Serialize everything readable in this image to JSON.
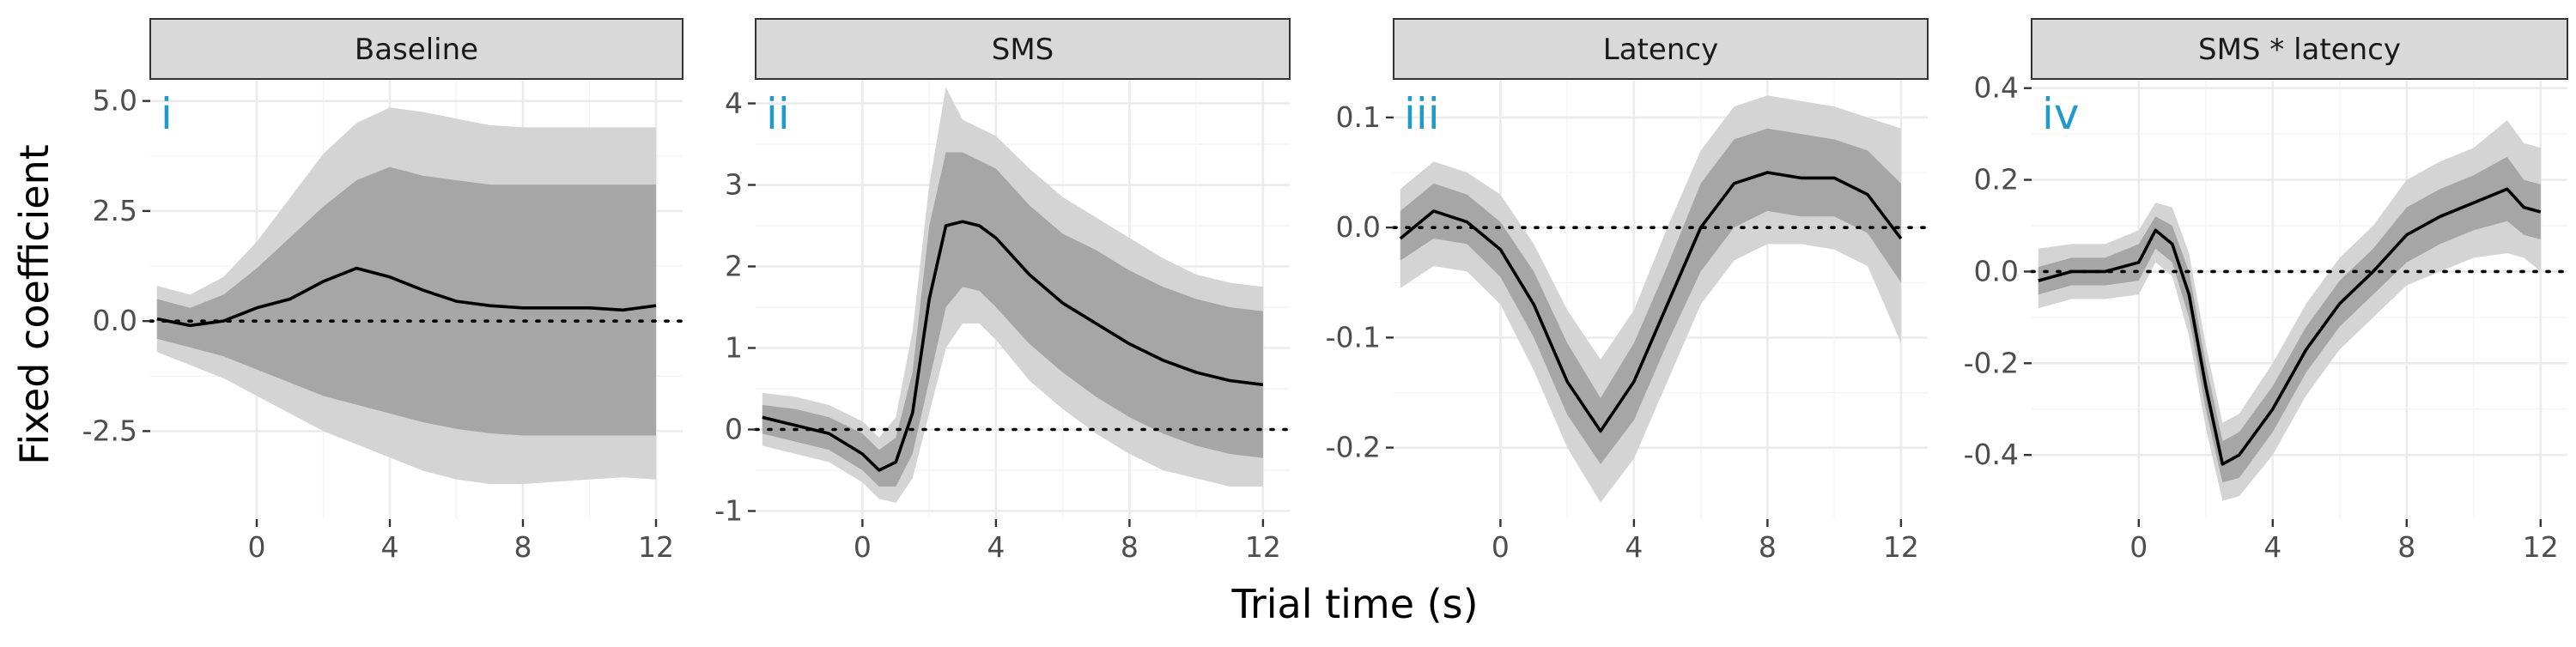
{
  "figure": {
    "xlabel": "Trial time (s)",
    "ylabel": "Fixed coefficient",
    "colors": {
      "outer_band": "#d4d4d4",
      "inner_band": "#a6a6a6",
      "line": "#000000",
      "panel_label": "#1e9bc8",
      "strip": "#d9d9d9"
    }
  },
  "chart_data": [
    {
      "type": "line",
      "title": "Baseline",
      "panel_label": "i",
      "x_ticks": [
        0,
        4,
        8,
        12
      ],
      "y_ticks": [
        5.0,
        2.5,
        0.0,
        -2.5
      ],
      "y_tick_labels": [
        "5.0",
        "2.5",
        "0.0",
        "-2.5"
      ],
      "xlim": [
        -3.2,
        12.8
      ],
      "ylim": [
        -4.5,
        5.5
      ],
      "reference_line": 0,
      "x": [
        -3,
        -2,
        -1,
        0,
        1,
        2,
        3,
        4,
        5,
        6,
        7,
        8,
        9,
        10,
        11,
        12
      ],
      "estimate": [
        0.05,
        -0.1,
        0.0,
        0.3,
        0.5,
        0.9,
        1.2,
        1.0,
        0.7,
        0.45,
        0.35,
        0.3,
        0.3,
        0.3,
        0.25,
        0.35
      ],
      "band_inner": {
        "lower": [
          -0.4,
          -0.6,
          -0.8,
          -1.1,
          -1.4,
          -1.7,
          -1.9,
          -2.1,
          -2.3,
          -2.45,
          -2.55,
          -2.6,
          -2.6,
          -2.6,
          -2.6,
          -2.6
        ],
        "upper": [
          0.5,
          0.3,
          0.6,
          1.2,
          1.9,
          2.6,
          3.2,
          3.5,
          3.3,
          3.2,
          3.1,
          3.1,
          3.1,
          3.1,
          3.1,
          3.1
        ]
      },
      "band_outer": {
        "lower": [
          -0.7,
          -1.0,
          -1.3,
          -1.7,
          -2.1,
          -2.5,
          -2.8,
          -3.1,
          -3.4,
          -3.6,
          -3.7,
          -3.7,
          -3.65,
          -3.6,
          -3.55,
          -3.6
        ],
        "upper": [
          0.8,
          0.6,
          1.0,
          1.8,
          2.8,
          3.8,
          4.5,
          4.85,
          4.75,
          4.6,
          4.45,
          4.4,
          4.4,
          4.4,
          4.4,
          4.4
        ]
      }
    },
    {
      "type": "line",
      "title": "SMS",
      "panel_label": "ii",
      "x_ticks": [
        0,
        4,
        8,
        12
      ],
      "y_ticks": [
        4,
        3,
        2,
        1,
        0,
        -1
      ],
      "y_tick_labels": [
        "4",
        "3",
        "2",
        "1",
        "0",
        "-1"
      ],
      "xlim": [
        -3.2,
        12.8
      ],
      "ylim": [
        -1.1,
        4.3
      ],
      "reference_line": 0,
      "x": [
        -3,
        -2,
        -1,
        0,
        0.5,
        1,
        1.5,
        2,
        2.5,
        3,
        3.5,
        4,
        5,
        6,
        7,
        8,
        9,
        10,
        11,
        12
      ],
      "estimate": [
        0.15,
        0.05,
        -0.05,
        -0.3,
        -0.5,
        -0.4,
        0.2,
        1.6,
        2.5,
        2.55,
        2.5,
        2.35,
        1.9,
        1.55,
        1.3,
        1.05,
        0.85,
        0.7,
        0.6,
        0.55
      ],
      "band_inner": {
        "lower": [
          -0.05,
          -0.15,
          -0.25,
          -0.5,
          -0.7,
          -0.7,
          -0.3,
          0.6,
          1.5,
          1.75,
          1.7,
          1.5,
          1.05,
          0.7,
          0.4,
          0.15,
          -0.05,
          -0.2,
          -0.3,
          -0.35
        ],
        "upper": [
          0.3,
          0.25,
          0.15,
          -0.05,
          -0.25,
          -0.1,
          0.7,
          2.5,
          3.4,
          3.4,
          3.3,
          3.2,
          2.75,
          2.4,
          2.2,
          1.95,
          1.75,
          1.6,
          1.5,
          1.45
        ]
      },
      "band_outer": {
        "lower": [
          -0.2,
          -0.3,
          -0.4,
          -0.65,
          -0.85,
          -0.9,
          -0.6,
          0.2,
          1.0,
          1.3,
          1.3,
          1.1,
          0.6,
          0.25,
          -0.05,
          -0.3,
          -0.5,
          -0.6,
          -0.7,
          -0.7
        ],
        "upper": [
          0.45,
          0.4,
          0.3,
          0.1,
          -0.1,
          0.15,
          1.2,
          3.0,
          4.2,
          3.8,
          3.7,
          3.6,
          3.2,
          2.85,
          2.6,
          2.35,
          2.1,
          1.9,
          1.8,
          1.75
        ]
      }
    },
    {
      "type": "line",
      "title": "Latency",
      "panel_label": "iii",
      "x_ticks": [
        0,
        4,
        8,
        12
      ],
      "y_ticks": [
        0.1,
        0.0,
        -0.1,
        -0.2
      ],
      "y_tick_labels": [
        "0.1",
        "0.0",
        "-0.1",
        "-0.2"
      ],
      "xlim": [
        -3.2,
        12.8
      ],
      "ylim": [
        -0.265,
        0.135
      ],
      "reference_line": 0,
      "x": [
        -3,
        -2,
        -1,
        0,
        1,
        2,
        3,
        4,
        5,
        6,
        7,
        8,
        9,
        10,
        11,
        12
      ],
      "estimate": [
        -0.01,
        0.015,
        0.005,
        -0.02,
        -0.07,
        -0.14,
        -0.185,
        -0.14,
        -0.07,
        0.0,
        0.04,
        0.05,
        0.045,
        0.045,
        0.03,
        -0.01
      ],
      "band_inner": {
        "lower": [
          -0.03,
          -0.01,
          -0.015,
          -0.045,
          -0.1,
          -0.17,
          -0.215,
          -0.175,
          -0.105,
          -0.04,
          0.0,
          0.015,
          0.01,
          0.01,
          -0.005,
          -0.05
        ],
        "upper": [
          0.015,
          0.04,
          0.03,
          0.005,
          -0.04,
          -0.105,
          -0.155,
          -0.105,
          -0.035,
          0.04,
          0.08,
          0.09,
          0.085,
          0.08,
          0.07,
          0.04
        ]
      },
      "band_outer": {
        "lower": [
          -0.055,
          -0.035,
          -0.04,
          -0.07,
          -0.13,
          -0.2,
          -0.25,
          -0.21,
          -0.14,
          -0.07,
          -0.03,
          -0.015,
          -0.015,
          -0.02,
          -0.035,
          -0.105
        ],
        "upper": [
          0.035,
          0.06,
          0.05,
          0.03,
          -0.015,
          -0.075,
          -0.12,
          -0.075,
          0.0,
          0.07,
          0.11,
          0.12,
          0.115,
          0.11,
          0.1,
          0.09
        ]
      }
    },
    {
      "type": "line",
      "title": "SMS * latency",
      "panel_label": "iv",
      "x_ticks": [
        0,
        4,
        8,
        12
      ],
      "y_ticks": [
        0.4,
        0.2,
        0.0,
        -0.2,
        -0.4
      ],
      "y_tick_labels": [
        "0.4",
        "0.2",
        "0.0",
        "-0.2",
        "-0.4"
      ],
      "xlim": [
        -3.2,
        12.8
      ],
      "ylim": [
        -0.54,
        0.42
      ],
      "reference_line": 0,
      "x": [
        -3,
        -2,
        -1,
        0,
        0.5,
        1,
        1.5,
        2,
        2.5,
        3,
        4,
        5,
        6,
        7,
        8,
        9,
        10,
        11,
        11.5,
        12
      ],
      "estimate": [
        -0.02,
        0.0,
        0.0,
        0.02,
        0.09,
        0.06,
        -0.05,
        -0.25,
        -0.42,
        -0.4,
        -0.3,
        -0.17,
        -0.07,
        0.0,
        0.08,
        0.12,
        0.15,
        0.18,
        0.14,
        0.13
      ],
      "band_inner": {
        "lower": [
          -0.05,
          -0.03,
          -0.03,
          -0.02,
          0.05,
          0.02,
          -0.1,
          -0.3,
          -0.46,
          -0.45,
          -0.35,
          -0.22,
          -0.12,
          -0.05,
          0.02,
          0.06,
          0.09,
          0.11,
          0.08,
          0.07
        ],
        "upper": [
          0.01,
          0.03,
          0.03,
          0.06,
          0.12,
          0.1,
          0.0,
          -0.2,
          -0.37,
          -0.35,
          -0.25,
          -0.12,
          -0.02,
          0.05,
          0.14,
          0.18,
          0.21,
          0.25,
          0.2,
          0.19
        ]
      },
      "band_outer": {
        "lower": [
          -0.08,
          -0.06,
          -0.06,
          -0.05,
          0.02,
          -0.01,
          -0.14,
          -0.34,
          -0.5,
          -0.49,
          -0.4,
          -0.27,
          -0.17,
          -0.1,
          -0.03,
          0.0,
          0.03,
          0.04,
          0.03,
          0.0
        ],
        "upper": [
          0.05,
          0.06,
          0.06,
          0.09,
          0.15,
          0.14,
          0.04,
          -0.16,
          -0.33,
          -0.31,
          -0.2,
          -0.07,
          0.03,
          0.1,
          0.2,
          0.24,
          0.27,
          0.33,
          0.28,
          0.27
        ]
      }
    }
  ]
}
